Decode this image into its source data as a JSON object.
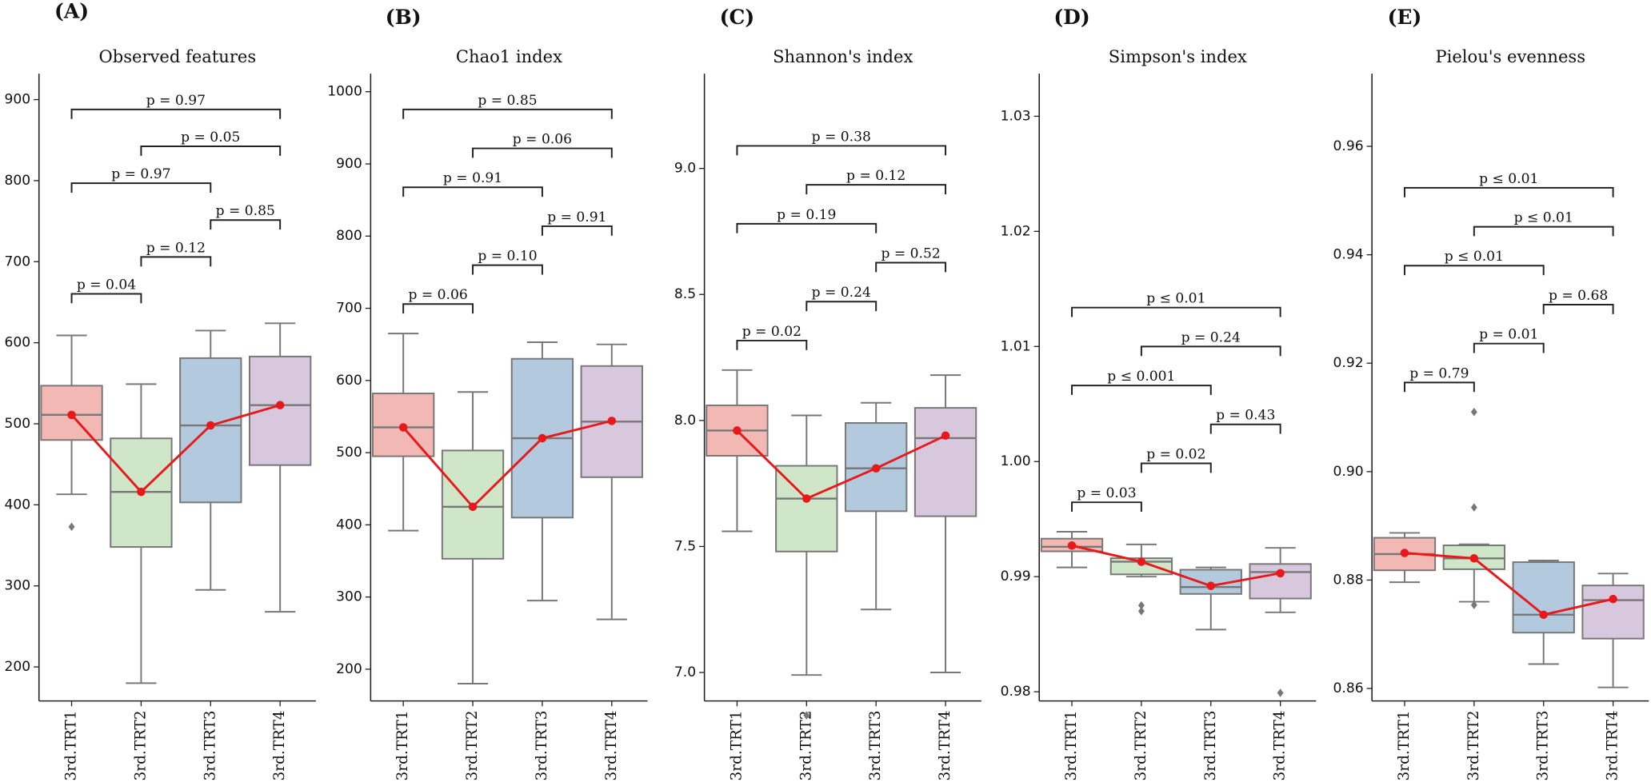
{
  "chart_data": [
    {
      "type": "box",
      "panel_label": "(A)",
      "title": "Observed features",
      "categories": [
        "3rd.TRT1",
        "3rd.TRT2",
        "3rd.TRT3",
        "3rd.TRT4"
      ],
      "colors": [
        "#f2b8b3",
        "#cfe6c9",
        "#b3c9dd",
        "#d8c8de"
      ],
      "boxes": [
        {
          "min": 413,
          "q1": 480,
          "median": 511,
          "q3": 547,
          "max": 609,
          "outliers": [
            373
          ]
        },
        {
          "min": 180,
          "q1": 348,
          "median": 416,
          "q3": 482,
          "max": 549,
          "outliers": []
        },
        {
          "min": 295,
          "q1": 403,
          "median": 498,
          "q3": 581,
          "max": 615,
          "outliers": []
        },
        {
          "min": 268,
          "q1": 449,
          "median": 523,
          "q3": 583,
          "max": 624,
          "outliers": []
        }
      ],
      "means": [
        511,
        416,
        498,
        523
      ],
      "mean_color": "#e8191a",
      "comparisons": [
        {
          "groups": [
            "3rd.TRT1",
            "3rd.TRT2"
          ],
          "label": "p = 0.04"
        },
        {
          "groups": [
            "3rd.TRT2",
            "3rd.TRT3"
          ],
          "label": "p = 0.12"
        },
        {
          "groups": [
            "3rd.TRT3",
            "3rd.TRT4"
          ],
          "label": "p = 0.85"
        },
        {
          "groups": [
            "3rd.TRT1",
            "3rd.TRT3"
          ],
          "label": "p = 0.97"
        },
        {
          "groups": [
            "3rd.TRT2",
            "3rd.TRT4"
          ],
          "label": "p = 0.05"
        },
        {
          "groups": [
            "3rd.TRT1",
            "3rd.TRT4"
          ],
          "label": "p = 0.97"
        }
      ],
      "ylim": [
        158,
        932
      ],
      "yticks": [
        200,
        300,
        400,
        500,
        600,
        700,
        800,
        900
      ]
    },
    {
      "type": "box",
      "panel_label": "(B)",
      "title": "Chao1 index",
      "categories": [
        "3rd.TRT1",
        "3rd.TRT2",
        "3rd.TRT3",
        "3rd.TRT4"
      ],
      "colors": [
        "#f2b8b3",
        "#cfe6c9",
        "#b3c9dd",
        "#d8c8de"
      ],
      "boxes": [
        {
          "min": 392,
          "q1": 495,
          "median": 535,
          "q3": 582,
          "max": 665,
          "outliers": []
        },
        {
          "min": 180,
          "q1": 353,
          "median": 425,
          "q3": 503,
          "max": 584,
          "outliers": []
        },
        {
          "min": 295,
          "q1": 410,
          "median": 520,
          "q3": 630,
          "max": 653,
          "outliers": []
        },
        {
          "min": 269,
          "q1": 466,
          "median": 543,
          "q3": 620,
          "max": 650,
          "outliers": []
        }
      ],
      "means": [
        535,
        425,
        520,
        544
      ],
      "mean_color": "#e8191a",
      "comparisons": [
        {
          "groups": [
            "3rd.TRT1",
            "3rd.TRT2"
          ],
          "label": "p = 0.06"
        },
        {
          "groups": [
            "3rd.TRT2",
            "3rd.TRT3"
          ],
          "label": "p = 0.10"
        },
        {
          "groups": [
            "3rd.TRT3",
            "3rd.TRT4"
          ],
          "label": "p = 0.91"
        },
        {
          "groups": [
            "3rd.TRT1",
            "3rd.TRT3"
          ],
          "label": "p = 0.91"
        },
        {
          "groups": [
            "3rd.TRT2",
            "3rd.TRT4"
          ],
          "label": "p = 0.06"
        },
        {
          "groups": [
            "3rd.TRT1",
            "3rd.TRT4"
          ],
          "label": "p = 0.85"
        }
      ],
      "ylim": [
        156,
        1025
      ],
      "yticks": [
        200,
        300,
        400,
        500,
        600,
        700,
        800,
        900,
        1000
      ]
    },
    {
      "type": "box",
      "panel_label": "(C)",
      "title": "Shannon's index",
      "categories": [
        "3rd.TRT1",
        "3rd.TRT2",
        "3rd.TRT3",
        "3rd.TRT4"
      ],
      "colors": [
        "#f2b8b3",
        "#cfe6c9",
        "#b3c9dd",
        "#d8c8de"
      ],
      "boxes": [
        {
          "min": 7.56,
          "q1": 7.86,
          "median": 7.96,
          "q3": 8.06,
          "max": 8.2,
          "outliers": []
        },
        {
          "min": 6.99,
          "q1": 7.48,
          "median": 7.69,
          "q3": 7.82,
          "max": 8.02,
          "outliers": [
            6.83
          ]
        },
        {
          "min": 7.25,
          "q1": 7.64,
          "median": 7.81,
          "q3": 7.99,
          "max": 8.07,
          "outliers": []
        },
        {
          "min": 7.0,
          "q1": 7.62,
          "median": 7.93,
          "q3": 8.05,
          "max": 8.18,
          "outliers": []
        }
      ],
      "means": [
        7.96,
        7.69,
        7.81,
        7.94
      ],
      "mean_color": "#e8191a",
      "comparisons": [
        {
          "groups": [
            "3rd.TRT1",
            "3rd.TRT2"
          ],
          "label": "p = 0.02"
        },
        {
          "groups": [
            "3rd.TRT2",
            "3rd.TRT3"
          ],
          "label": "p = 0.24"
        },
        {
          "groups": [
            "3rd.TRT3",
            "3rd.TRT4"
          ],
          "label": "p = 0.52"
        },
        {
          "groups": [
            "3rd.TRT1",
            "3rd.TRT3"
          ],
          "label": "p = 0.19"
        },
        {
          "groups": [
            "3rd.TRT2",
            "3rd.TRT4"
          ],
          "label": "p = 0.12"
        },
        {
          "groups": [
            "3rd.TRT1",
            "3rd.TRT4"
          ],
          "label": "p = 0.38"
        }
      ],
      "ylim": [
        6.887,
        9.376
      ],
      "yticks": [
        {
          "value": 7,
          "label": "7.0"
        },
        7.5,
        {
          "value": 8,
          "label": "8.0"
        },
        8.5,
        {
          "value": 9,
          "label": "9.0"
        }
      ]
    },
    {
      "type": "box",
      "panel_label": "(D)",
      "title": "Simpson's index",
      "categories": [
        "3rd.TRT1",
        "3rd.TRT2",
        "3rd.TRT3",
        "3rd.TRT4"
      ],
      "colors": [
        "#f2b8b3",
        "#cfe6c9",
        "#b3c9dd",
        "#d8c8de"
      ],
      "boxes": [
        {
          "min": 0.9908,
          "q1": 0.9922,
          "median": 0.9926,
          "q3": 0.9933,
          "max": 0.9939,
          "outliers": []
        },
        {
          "min": 0.99,
          "q1": 0.9902,
          "median": 0.9913,
          "q3": 0.9916,
          "max": 0.9928,
          "outliers": [
            0.9875,
            0.987
          ]
        },
        {
          "min": 0.9854,
          "q1": 0.9885,
          "median": 0.9891,
          "q3": 0.9906,
          "max": 0.9908,
          "outliers": []
        },
        {
          "min": 0.9869,
          "q1": 0.9881,
          "median": 0.9904,
          "q3": 0.9911,
          "max": 0.9925,
          "outliers": [
            0.9799
          ]
        }
      ],
      "means": [
        0.9927,
        0.9913,
        0.9892,
        0.9903
      ],
      "mean_color": "#e8191a",
      "comparisons": [
        {
          "groups": [
            "3rd.TRT1",
            "3rd.TRT2"
          ],
          "label": "p = 0.03"
        },
        {
          "groups": [
            "3rd.TRT2",
            "3rd.TRT3"
          ],
          "label": "p = 0.02"
        },
        {
          "groups": [
            "3rd.TRT3",
            "3rd.TRT4"
          ],
          "label": "p = 0.43"
        },
        {
          "groups": [
            "3rd.TRT1",
            "3rd.TRT3"
          ],
          "label": "p ≤ 0.001"
        },
        {
          "groups": [
            "3rd.TRT2",
            "3rd.TRT4"
          ],
          "label": "p = 0.24"
        },
        {
          "groups": [
            "3rd.TRT1",
            "3rd.TRT4"
          ],
          "label": "p ≤ 0.01"
        }
      ],
      "ylim": [
        0.9792,
        1.0337
      ],
      "yticks": [
        0.98,
        0.99,
        {
          "value": 1,
          "label": "1.00"
        },
        1.01,
        1.02,
        1.03
      ]
    },
    {
      "type": "box",
      "panel_label": "(E)",
      "title": "Pielou's evenness",
      "categories": [
        "3rd.TRT1",
        "3rd.TRT2",
        "3rd.TRT3",
        "3rd.TRT4"
      ],
      "colors": [
        "#f2b8b3",
        "#cfe6c9",
        "#b3c9dd",
        "#d8c8de"
      ],
      "boxes": [
        {
          "min": 0.8796,
          "q1": 0.8818,
          "median": 0.8848,
          "q3": 0.8878,
          "max": 0.8887,
          "outliers": []
        },
        {
          "min": 0.876,
          "q1": 0.882,
          "median": 0.884,
          "q3": 0.8864,
          "max": 0.8866,
          "outliers": [
            0.911,
            0.8934,
            0.8754
          ]
        },
        {
          "min": 0.8645,
          "q1": 0.8703,
          "median": 0.8736,
          "q3": 0.8833,
          "max": 0.8836,
          "outliers": []
        },
        {
          "min": 0.8602,
          "q1": 0.8692,
          "median": 0.8763,
          "q3": 0.879,
          "max": 0.8812,
          "outliers": []
        }
      ],
      "means": [
        0.885,
        0.884,
        0.8736,
        0.8765
      ],
      "mean_color": "#e8191a",
      "comparisons": [
        {
          "groups": [
            "3rd.TRT1",
            "3rd.TRT2"
          ],
          "label": "p = 0.79"
        },
        {
          "groups": [
            "3rd.TRT2",
            "3rd.TRT3"
          ],
          "label": "p = 0.01"
        },
        {
          "groups": [
            "3rd.TRT3",
            "3rd.TRT4"
          ],
          "label": "p = 0.68"
        },
        {
          "groups": [
            "3rd.TRT1",
            "3rd.TRT3"
          ],
          "label": "p ≤ 0.01"
        },
        {
          "groups": [
            "3rd.TRT2",
            "3rd.TRT4"
          ],
          "label": "p ≤ 0.01"
        },
        {
          "groups": [
            "3rd.TRT1",
            "3rd.TRT4"
          ],
          "label": "p ≤ 0.01"
        }
      ],
      "ylim": [
        0.8577,
        0.9734
      ],
      "yticks": [
        0.86,
        0.88,
        {
          "value": 0.9,
          "label": "0.90"
        },
        0.92,
        0.94,
        0.96
      ]
    }
  ]
}
